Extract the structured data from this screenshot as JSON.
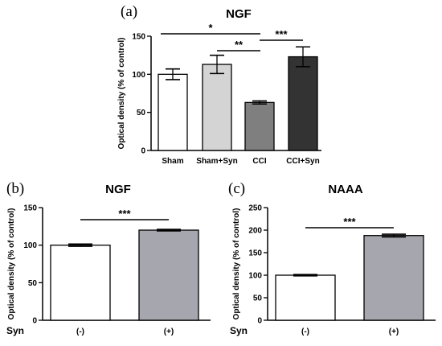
{
  "chart_data": [
    {
      "panel": "(a)",
      "type": "bar",
      "title": "NGF",
      "ylabel": "Optical density (% of control)",
      "xlabel": "",
      "ylim": [
        0,
        150
      ],
      "yticks": [
        0,
        50,
        100,
        150
      ],
      "categories": [
        "Sham",
        "Sham+Syn",
        "CCI",
        "CCI+Syn"
      ],
      "values": [
        100,
        113,
        63,
        123
      ],
      "errors": [
        7,
        12,
        2,
        13
      ],
      "bar_colors": [
        "#ffffff",
        "#d4d4d4",
        "#7f7f7f",
        "#333333"
      ],
      "significance": [
        {
          "from": 0,
          "to": 2,
          "label": "*"
        },
        {
          "from": 1,
          "to": 2,
          "label": "**"
        },
        {
          "from": 2,
          "to": 3,
          "label": "***"
        }
      ]
    },
    {
      "panel": "(b)",
      "type": "bar",
      "title": "NGF",
      "ylabel": "Optical density (% of control)",
      "xlabel": "",
      "ylim": [
        0,
        150
      ],
      "yticks": [
        0,
        50,
        100,
        150
      ],
      "group_label": "Syn",
      "categories": [
        "(-)",
        "(+)"
      ],
      "values": [
        100,
        120
      ],
      "errors": [
        1.5,
        1
      ],
      "bar_colors": [
        "#ffffff",
        "#a6a6ae"
      ],
      "significance": [
        {
          "from": 0,
          "to": 1,
          "label": "***"
        }
      ]
    },
    {
      "panel": "(c)",
      "type": "bar",
      "title": "NAAA",
      "ylabel": "Optical density (% of control)",
      "xlabel": "",
      "ylim": [
        0,
        250
      ],
      "yticks": [
        0,
        50,
        100,
        150,
        200,
        250
      ],
      "group_label": "Syn",
      "categories": [
        "(-)",
        "(+)"
      ],
      "values": [
        100,
        188
      ],
      "errors": [
        1.5,
        3
      ],
      "bar_colors": [
        "#ffffff",
        "#a6a6ae"
      ],
      "significance": [
        {
          "from": 0,
          "to": 1,
          "label": "***"
        }
      ]
    }
  ]
}
